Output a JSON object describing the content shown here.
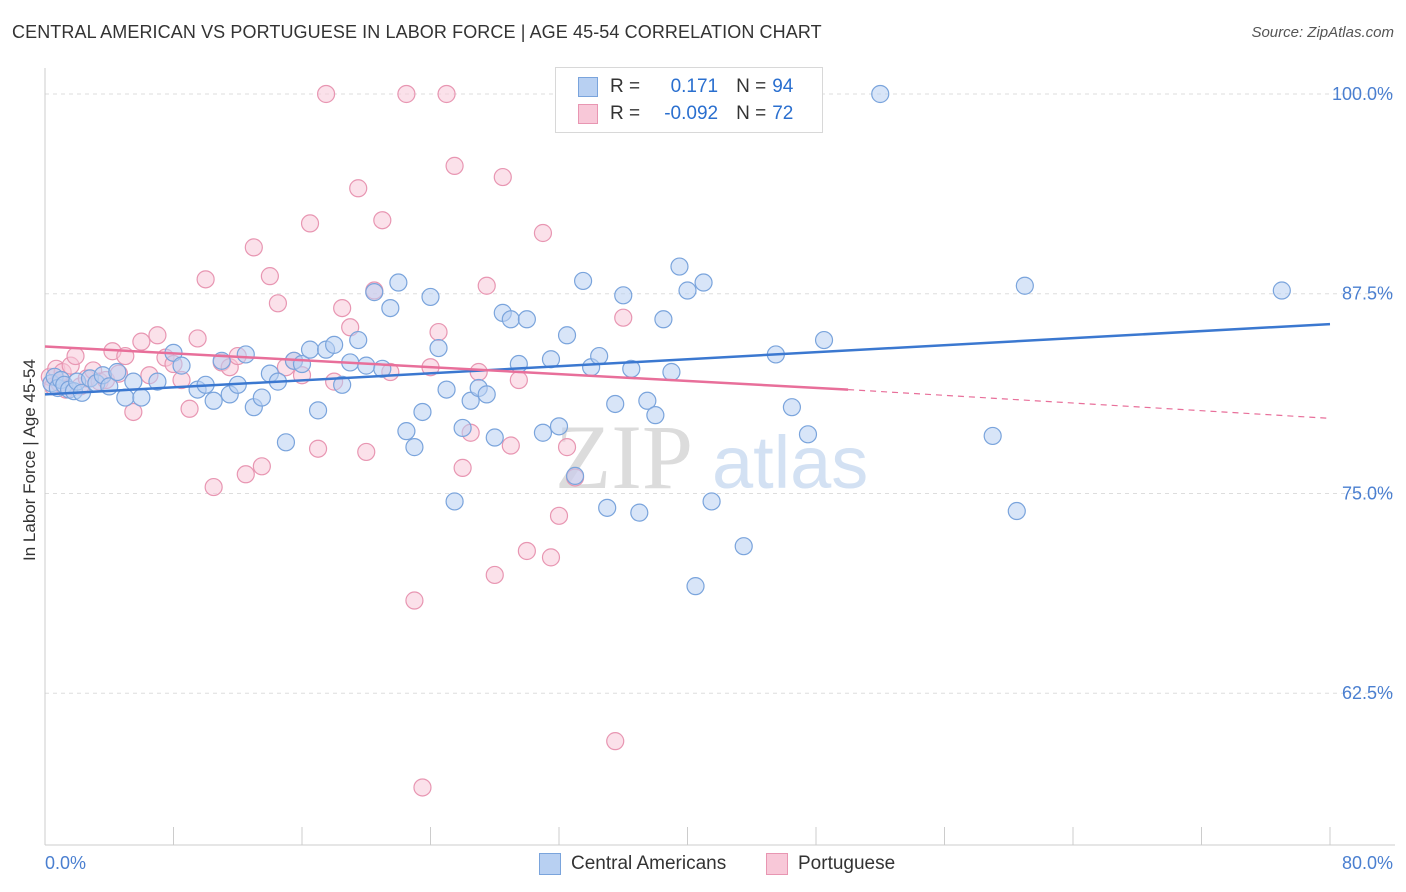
{
  "header": {
    "title": "CENTRAL AMERICAN VS PORTUGUESE IN LABOR FORCE | AGE 45-54 CORRELATION CHART",
    "source": "Source: ZipAtlas.com"
  },
  "watermark": {
    "zip": "ZIP",
    "atlas": "atlas"
  },
  "legend": {
    "r_label": "R =",
    "n_label": "N =",
    "rows": [
      {
        "r": "0.171",
        "n": "94",
        "fill": "#b8d0f2",
        "stroke": "#7aa4dc"
      },
      {
        "r": "-0.092",
        "n": "72",
        "fill": "#f8c8d8",
        "stroke": "#e896b2"
      }
    ]
  },
  "bottom_legend": [
    {
      "label": "Central Americans",
      "fill": "#b8d0f2",
      "stroke": "#7aa4dc"
    },
    {
      "label": "Portuguese",
      "fill": "#f8c8d8",
      "stroke": "#e896b2"
    }
  ],
  "colors": {
    "blue": "#3b78d0",
    "pink": "#e86f9a",
    "axis_text": "#4a7fd0",
    "grid": "#dddddd"
  },
  "chart_data": {
    "type": "scatter",
    "title": "CENTRAL AMERICAN VS PORTUGUESE IN LABOR FORCE | AGE 45-54 CORRELATION CHART",
    "xlabel": "",
    "ylabel": "In Labor Force | Age 45-54",
    "xlim": [
      0,
      80
    ],
    "ylim": [
      53,
      101
    ],
    "x_tick_labels": [
      "0.0%",
      "80.0%"
    ],
    "y_ticks": [
      62.5,
      75.0,
      87.5,
      100.0
    ],
    "y_tick_labels": [
      "62.5%",
      "75.0%",
      "87.5%",
      "100.0%"
    ],
    "grid": true,
    "series": [
      {
        "name": "Central Americans",
        "r": 0.171,
        "n": 94,
        "trend": {
          "x": [
            0,
            80
          ],
          "y": [
            81.2,
            85.6
          ]
        },
        "points": [
          [
            0.4,
            81.9
          ],
          [
            0.6,
            82.3
          ],
          [
            0.8,
            81.6
          ],
          [
            1.0,
            82.1
          ],
          [
            1.2,
            81.8
          ],
          [
            1.5,
            81.5
          ],
          [
            1.8,
            81.4
          ],
          [
            2.0,
            82.0
          ],
          [
            2.3,
            81.3
          ],
          [
            2.8,
            82.2
          ],
          [
            3.2,
            81.9
          ],
          [
            3.6,
            82.4
          ],
          [
            4.0,
            81.7
          ],
          [
            4.5,
            82.6
          ],
          [
            5.0,
            81.0
          ],
          [
            5.5,
            82.0
          ],
          [
            6.0,
            81.0
          ],
          [
            7.0,
            82.0
          ],
          [
            8.0,
            83.8
          ],
          [
            8.5,
            83.0
          ],
          [
            9.5,
            81.5
          ],
          [
            10.0,
            81.8
          ],
          [
            10.5,
            80.8
          ],
          [
            11.0,
            83.3
          ],
          [
            11.5,
            81.2
          ],
          [
            12.0,
            81.8
          ],
          [
            12.5,
            83.7
          ],
          [
            13.0,
            80.4
          ],
          [
            13.5,
            81.0
          ],
          [
            14.0,
            82.5
          ],
          [
            14.5,
            82.0
          ],
          [
            15.0,
            78.2
          ],
          [
            15.5,
            83.3
          ],
          [
            16.0,
            83.1
          ],
          [
            16.5,
            84.0
          ],
          [
            17.0,
            80.2
          ],
          [
            17.5,
            84.0
          ],
          [
            18.0,
            84.3
          ],
          [
            18.5,
            81.8
          ],
          [
            19.0,
            83.2
          ],
          [
            19.5,
            84.6
          ],
          [
            20.0,
            83.0
          ],
          [
            20.5,
            87.6
          ],
          [
            21.0,
            82.8
          ],
          [
            21.5,
            86.6
          ],
          [
            22.0,
            88.2
          ],
          [
            22.5,
            78.9
          ],
          [
            23.0,
            77.9
          ],
          [
            23.5,
            80.1
          ],
          [
            24.0,
            87.3
          ],
          [
            24.5,
            84.1
          ],
          [
            25.0,
            81.5
          ],
          [
            25.5,
            74.5
          ],
          [
            26.0,
            79.1
          ],
          [
            26.5,
            80.8
          ],
          [
            27.0,
            81.6
          ],
          [
            27.5,
            81.2
          ],
          [
            28.0,
            78.5
          ],
          [
            28.5,
            86.3
          ],
          [
            29.0,
            85.9
          ],
          [
            29.5,
            83.1
          ],
          [
            30.0,
            85.9
          ],
          [
            31.0,
            78.8
          ],
          [
            31.5,
            83.4
          ],
          [
            32.0,
            79.2
          ],
          [
            32.5,
            84.9
          ],
          [
            33.0,
            76.1
          ],
          [
            33.5,
            88.3
          ],
          [
            34.0,
            82.9
          ],
          [
            34.5,
            83.6
          ],
          [
            35.0,
            74.1
          ],
          [
            35.5,
            80.6
          ],
          [
            36.0,
            87.4
          ],
          [
            36.5,
            82.8
          ],
          [
            37.0,
            73.8
          ],
          [
            37.5,
            80.8
          ],
          [
            38.0,
            79.9
          ],
          [
            38.5,
            85.9
          ],
          [
            39.0,
            82.6
          ],
          [
            39.5,
            89.2
          ],
          [
            40.0,
            87.7
          ],
          [
            40.5,
            69.2
          ],
          [
            41.0,
            88.2
          ],
          [
            41.5,
            74.5
          ],
          [
            43.5,
            71.7
          ],
          [
            45.5,
            83.7
          ],
          [
            46.5,
            80.4
          ],
          [
            47.5,
            78.7
          ],
          [
            48.5,
            84.6
          ],
          [
            52.0,
            100.0
          ],
          [
            59.0,
            78.6
          ],
          [
            60.5,
            73.9
          ],
          [
            61.0,
            88.0
          ],
          [
            77.0,
            87.7
          ]
        ]
      },
      {
        "name": "Portuguese",
        "r": -0.092,
        "n": 72,
        "trend": {
          "x": [
            0,
            50
          ],
          "y": [
            84.2,
            81.5
          ]
        },
        "trend_dashed": {
          "x": [
            50,
            80
          ],
          "y": [
            81.5,
            79.7
          ]
        },
        "points": [
          [
            0.3,
            82.3
          ],
          [
            0.5,
            81.7
          ],
          [
            0.7,
            82.8
          ],
          [
            0.9,
            81.9
          ],
          [
            1.1,
            82.6
          ],
          [
            1.3,
            81.5
          ],
          [
            1.6,
            83.0
          ],
          [
            1.9,
            83.6
          ],
          [
            2.2,
            81.7
          ],
          [
            2.6,
            82.2
          ],
          [
            3.0,
            82.7
          ],
          [
            3.4,
            82.0
          ],
          [
            3.8,
            82.1
          ],
          [
            4.2,
            83.9
          ],
          [
            4.6,
            82.5
          ],
          [
            5.0,
            83.6
          ],
          [
            5.5,
            80.1
          ],
          [
            6.0,
            84.5
          ],
          [
            6.5,
            82.4
          ],
          [
            7.0,
            84.9
          ],
          [
            7.5,
            83.5
          ],
          [
            8.0,
            83.1
          ],
          [
            8.5,
            82.1
          ],
          [
            9.0,
            80.3
          ],
          [
            9.5,
            84.7
          ],
          [
            10.0,
            88.4
          ],
          [
            10.5,
            75.4
          ],
          [
            11.0,
            83.2
          ],
          [
            11.5,
            82.9
          ],
          [
            12.0,
            83.6
          ],
          [
            12.5,
            76.2
          ],
          [
            13.0,
            90.4
          ],
          [
            13.5,
            76.7
          ],
          [
            14.0,
            88.6
          ],
          [
            14.5,
            86.9
          ],
          [
            15.0,
            82.9
          ],
          [
            15.5,
            83.3
          ],
          [
            16.0,
            82.4
          ],
          [
            16.5,
            91.9
          ],
          [
            17.0,
            77.8
          ],
          [
            17.5,
            100.0
          ],
          [
            18.0,
            82.0
          ],
          [
            18.5,
            86.6
          ],
          [
            19.0,
            85.4
          ],
          [
            19.5,
            94.1
          ],
          [
            20.0,
            77.6
          ],
          [
            20.5,
            87.7
          ],
          [
            21.0,
            92.1
          ],
          [
            21.5,
            82.6
          ],
          [
            22.5,
            100.0
          ],
          [
            23.0,
            68.3
          ],
          [
            23.5,
            56.6
          ],
          [
            24.0,
            82.9
          ],
          [
            24.5,
            85.1
          ],
          [
            25.0,
            100.0
          ],
          [
            25.5,
            95.5
          ],
          [
            26.0,
            76.6
          ],
          [
            26.5,
            78.8
          ],
          [
            27.0,
            82.6
          ],
          [
            27.5,
            88.0
          ],
          [
            28.0,
            69.9
          ],
          [
            28.5,
            94.8
          ],
          [
            29.0,
            78.0
          ],
          [
            29.5,
            82.1
          ],
          [
            30.0,
            71.4
          ],
          [
            31.0,
            91.3
          ],
          [
            31.5,
            71.0
          ],
          [
            32.0,
            73.6
          ],
          [
            32.5,
            77.9
          ],
          [
            33.0,
            76.0
          ],
          [
            35.5,
            59.5
          ],
          [
            36.0,
            86.0
          ]
        ]
      }
    ]
  }
}
